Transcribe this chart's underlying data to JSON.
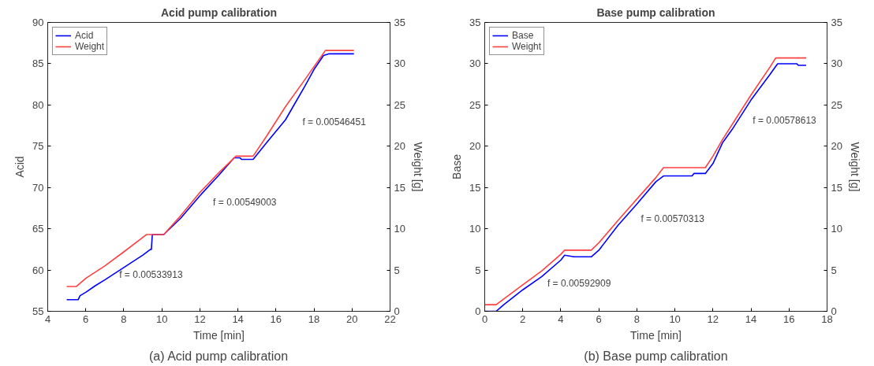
{
  "chart_data": [
    {
      "type": "line",
      "title": "Acid pump calibration",
      "xlabel": "Time [min]",
      "ylabel": "Acid",
      "y2label": "Weight [g]",
      "xlim": [
        4,
        22
      ],
      "xticks": [
        4,
        6,
        8,
        10,
        12,
        14,
        16,
        18,
        20,
        22
      ],
      "ylim": [
        55,
        90
      ],
      "yticks": [
        55,
        60,
        65,
        70,
        75,
        80,
        85,
        90
      ],
      "y2lim": [
        0,
        35
      ],
      "y2ticks": [
        0,
        5,
        10,
        15,
        20,
        25,
        30,
        35
      ],
      "grid": false,
      "legend": "top left",
      "line_style": "solid",
      "series": [
        {
          "name": "Acid",
          "color": "#0000ff",
          "x": [
            5,
            5.6,
            5.7,
            6,
            6.5,
            7,
            8,
            9,
            9.4,
            9.45,
            9.5,
            10.1,
            11,
            12,
            13,
            13.8,
            14.1,
            14.2,
            14.8,
            15.5,
            16.5,
            17,
            17.5,
            18,
            18.5,
            18.8,
            20.1
          ],
          "values": [
            56.4,
            56.4,
            56.9,
            57.3,
            58.1,
            58.8,
            60.3,
            61.8,
            62.5,
            62.5,
            64.3,
            64.3,
            66.3,
            69.0,
            71.5,
            73.6,
            73.6,
            73.4,
            73.4,
            75.4,
            78.2,
            80.2,
            82.2,
            84.3,
            86.0,
            86.2,
            86.2
          ]
        },
        {
          "name": "Weight",
          "color": "#ff4040",
          "axis": "y2",
          "x": [
            5,
            5.5,
            6,
            7,
            8,
            9.2,
            10.1,
            11,
            12,
            13,
            13.9,
            14.8,
            15.5,
            16.5,
            17.5,
            18.6,
            20.1
          ],
          "values": [
            3.0,
            3.0,
            4.0,
            5.5,
            7.2,
            9.3,
            9.3,
            11.6,
            14.4,
            16.8,
            18.8,
            18.8,
            21.2,
            24.8,
            28.0,
            31.6,
            31.6
          ]
        }
      ],
      "annotations": [
        "f = 0.00533913",
        "f = 0.00549003",
        "f = 0.00546451",
        "(a) Acid pump calibration"
      ]
    },
    {
      "type": "line",
      "title": "Base pump calibration",
      "xlabel": "Time [min]",
      "ylabel": "Base",
      "y2label": "Weight [g]",
      "xlim": [
        0,
        18
      ],
      "xticks": [
        0,
        2,
        4,
        6,
        8,
        10,
        12,
        14,
        16,
        18
      ],
      "ylim": [
        0,
        35
      ],
      "yticks": [
        0,
        5,
        10,
        15,
        20,
        25,
        30,
        35
      ],
      "y2lim": [
        0,
        35
      ],
      "y2ticks": [
        0,
        5,
        10,
        15,
        20,
        25,
        30,
        35
      ],
      "grid": false,
      "legend": "top left",
      "line_style": "solid",
      "series": [
        {
          "name": "Base",
          "color": "#0000ff",
          "x": [
            0,
            0.6,
            1,
            2,
            3,
            4,
            4.2,
            4.7,
            5.6,
            6,
            7,
            8,
            9,
            9.4,
            10.9,
            11,
            11.6,
            12,
            12.5,
            13,
            14,
            15,
            15.4,
            16.4,
            16.5,
            16.9
          ],
          "values": [
            0,
            0,
            0.8,
            2.6,
            4.2,
            6.2,
            6.8,
            6.6,
            6.6,
            7.4,
            10.4,
            13.0,
            15.7,
            16.4,
            16.4,
            16.7,
            16.7,
            17.9,
            20.4,
            22.0,
            25.6,
            28.7,
            30.0,
            30.0,
            29.8,
            29.8
          ]
        },
        {
          "name": "Weight",
          "color": "#ff4040",
          "axis": "y2",
          "x": [
            0,
            0.6,
            1,
            2,
            3,
            4,
            4.2,
            5.6,
            6,
            7,
            8,
            9,
            9.4,
            11.6,
            12,
            12.5,
            13,
            14,
            15,
            15.3,
            16.9
          ],
          "values": [
            0.8,
            0.8,
            1.5,
            3.2,
            4.9,
            6.9,
            7.4,
            7.4,
            8.3,
            11.0,
            13.6,
            16.2,
            17.4,
            17.4,
            18.8,
            20.8,
            22.6,
            26.2,
            29.6,
            30.7,
            30.7
          ]
        }
      ],
      "annotations": [
        "f = 0.00592909",
        "f = 0.00570313",
        "f = 0.00578613",
        "(b) Base pump calibration"
      ]
    }
  ]
}
